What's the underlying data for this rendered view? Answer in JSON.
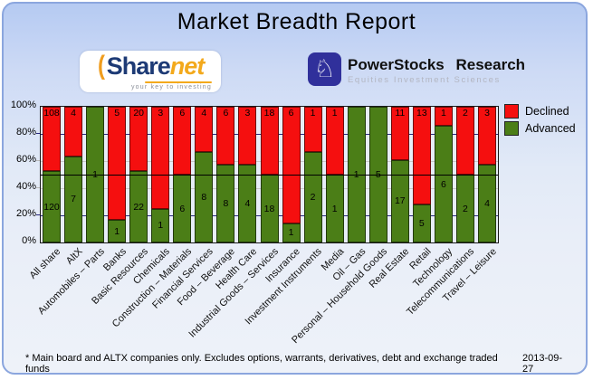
{
  "title": "Market Breadth Report",
  "logos": {
    "sharenet": {
      "name_part1": "Share",
      "name_part2": "net",
      "tagline": "your key to investing"
    },
    "powerstocks": {
      "name": "PowerStocks Research",
      "tagline": "Equities Investment Sciences",
      "icon": "chess-knight-icon"
    }
  },
  "legend": [
    {
      "label": "Declined",
      "color": "#f50f0f"
    },
    {
      "label": "Advanced",
      "color": "#4b7e17"
    }
  ],
  "chart_data": {
    "type": "bar",
    "stacked": true,
    "percent_normalized": true,
    "title": "Market Breadth Report",
    "ylabel": "",
    "xlabel": "",
    "ylim": [
      0,
      100
    ],
    "y_ticks": [
      "100%",
      "80%",
      "60%",
      "40%",
      "20%",
      "0%"
    ],
    "grid": true,
    "reference_line_percent": 50,
    "legend_position": "top-right",
    "categories": [
      "All share",
      "AltX",
      "Automobiles – Parts",
      "Banks",
      "Basic Resources",
      "Chemicals",
      "Construction – Materials",
      "Financial Services",
      "Food – Beverage",
      "Health Care",
      "Industrial Goods – Services",
      "Insurance",
      "Investment Instruments",
      "Media",
      "Oil – Gas",
      "Personal – Household Goods",
      "Real Estate",
      "Retail",
      "Technology",
      "Telecommunications",
      "Travel – Leisure"
    ],
    "series": [
      {
        "name": "Declined",
        "color": "#f50f0f",
        "values": [
          108,
          4,
          0,
          5,
          20,
          3,
          6,
          4,
          6,
          3,
          18,
          6,
          1,
          1,
          0,
          0,
          11,
          13,
          1,
          2,
          3
        ]
      },
      {
        "name": "Advanced",
        "color": "#4b7e17",
        "values": [
          120,
          7,
          1,
          1,
          22,
          1,
          6,
          8,
          8,
          4,
          18,
          1,
          2,
          1,
          1,
          5,
          17,
          5,
          6,
          2,
          4
        ]
      }
    ]
  },
  "footer": {
    "note": "* Main board and ALTX companies only. Excludes options, warrants, derivatives, debt and exchange traded funds",
    "date": "2013-09-27"
  }
}
